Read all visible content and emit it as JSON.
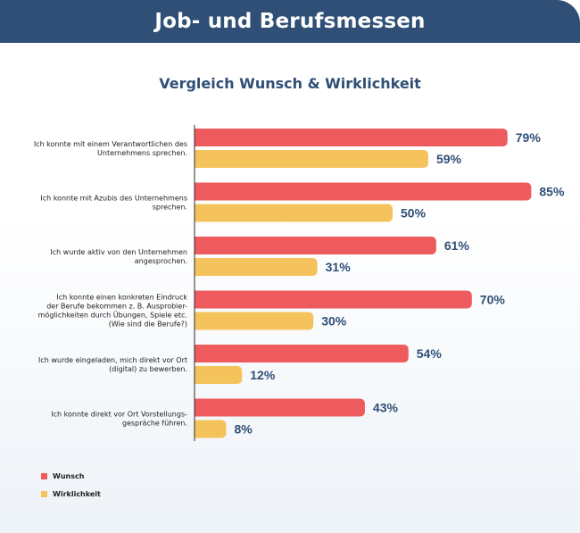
{
  "header": {
    "title": "Job- und Berufsmessen"
  },
  "chart_data": {
    "type": "bar",
    "orientation": "horizontal",
    "title": "Vergleich Wunsch & Wirklichkeit",
    "xlim": [
      0,
      100
    ],
    "grid": false,
    "legend_position": "bottom-left",
    "categories": [
      [
        "Ich konnte mit einem Verantwortlichen des",
        "Unternehmens sprechen."
      ],
      [
        "Ich konnte mit Azubis des Unternehmens",
        "sprechen."
      ],
      [
        "Ich wurde aktiv von den Unternehmen",
        "angesprochen."
      ],
      [
        "Ich konnte einen konkreten Eindruck",
        "der Berufe bekommen z. B. Ausprobier-",
        "möglichkeiten durch Übungen, Spiele etc.",
        "(Wie sind die Berufe?)"
      ],
      [
        "Ich wurde eingeladen, mich direkt vor Ort",
        "(digital) zu bewerben."
      ],
      [
        "Ich konnte direkt vor Ort Vorstellungs-",
        "gespräche führen."
      ]
    ],
    "series": [
      {
        "name": "Wunsch",
        "color": "#ee5b5e",
        "values": [
          79,
          85,
          61,
          70,
          54,
          43
        ],
        "labels": [
          "79%",
          "85%",
          "61%",
          "70%",
          "54%",
          "43%"
        ]
      },
      {
        "name": "Wirklichkeit",
        "color": "#f5c35c",
        "values": [
          59,
          50,
          31,
          30,
          12,
          8
        ],
        "labels": [
          "59%",
          "50%",
          "31%",
          "30%",
          "12%",
          "8%"
        ]
      }
    ]
  }
}
